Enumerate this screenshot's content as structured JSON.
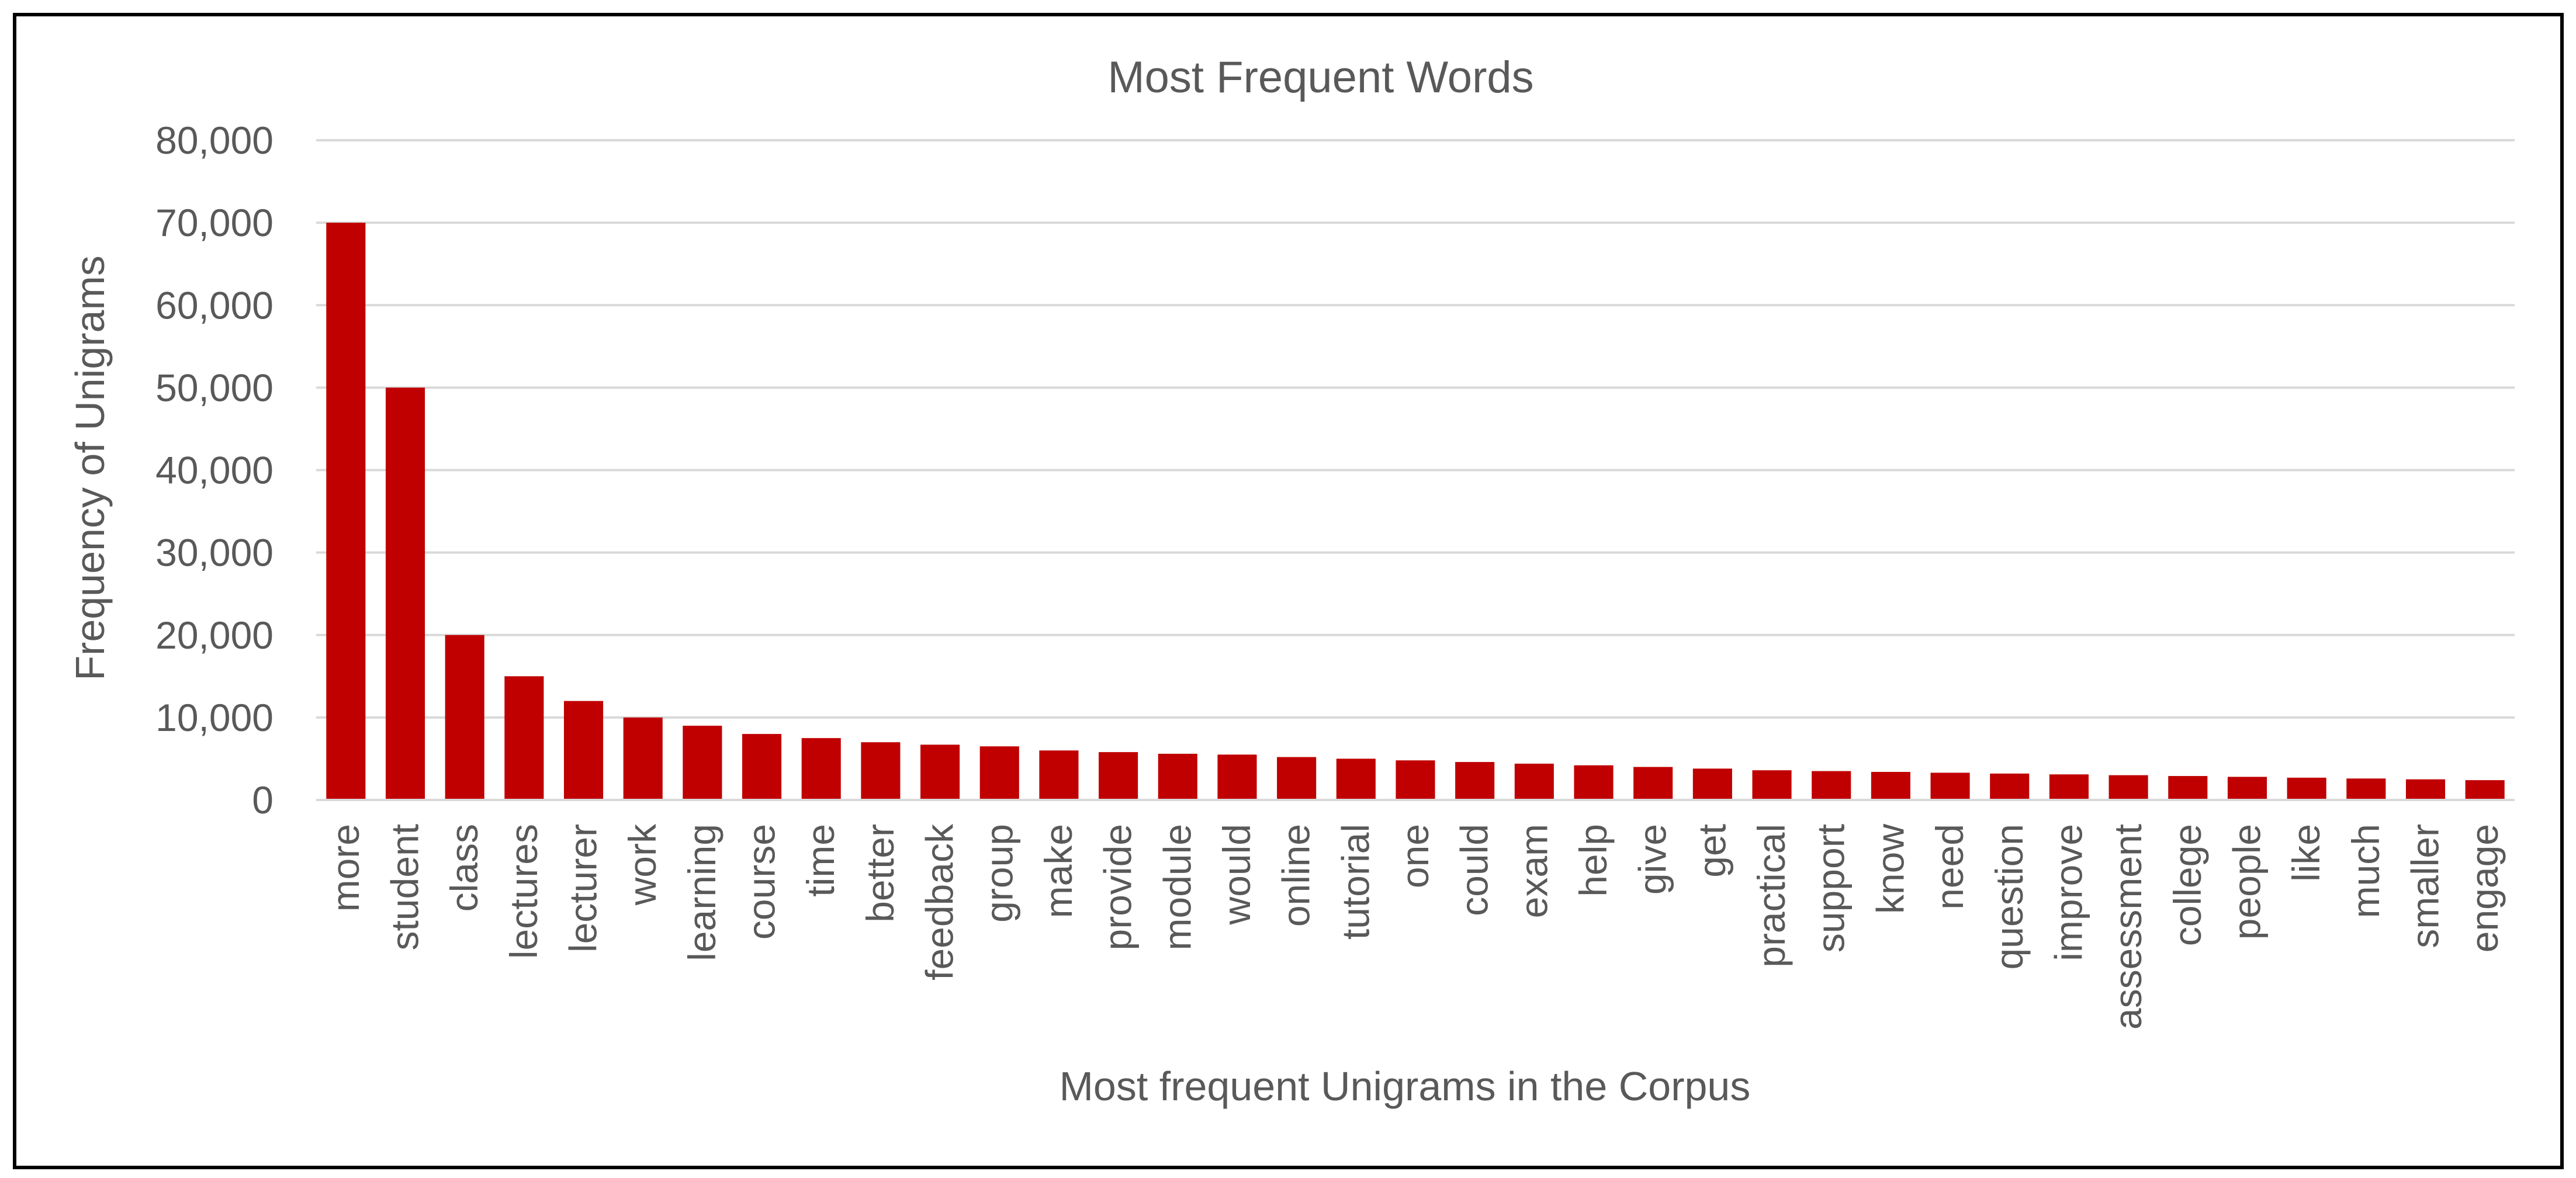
{
  "chart_data": {
    "type": "bar",
    "title": "Most Frequent Words",
    "xlabel": "Most frequent Unigrams in the Corpus",
    "ylabel": "Frequency of Unigrams",
    "ylim": [
      0,
      80000
    ],
    "yticks": [
      "0",
      "10,000",
      "20,000",
      "30,000",
      "40,000",
      "50,000",
      "60,000",
      "70,000",
      "80,000"
    ],
    "grid": true,
    "legend": "none",
    "bar_color": "#C00000",
    "categories": [
      "more",
      "student",
      "class",
      "lectures",
      "lecturer",
      "work",
      "learning",
      "course",
      "time",
      "better",
      "feedback",
      "group",
      "make",
      "provide",
      "module",
      "would",
      "online",
      "tutorial",
      "one",
      "could",
      "exam",
      "help",
      "give",
      "get",
      "practical",
      "support",
      "know",
      "need",
      "question",
      "improve",
      "assessment",
      "college",
      "people",
      "like",
      "much",
      "smaller",
      "engage"
    ],
    "values": [
      70000,
      50000,
      20000,
      15000,
      12000,
      10000,
      9000,
      8000,
      7500,
      7000,
      6700,
      6500,
      6000,
      5800,
      5600,
      5500,
      5200,
      5000,
      4800,
      4600,
      4400,
      4200,
      4000,
      3800,
      3600,
      3500,
      3400,
      3300,
      3200,
      3100,
      3000,
      2900,
      2800,
      2700,
      2600,
      2500,
      2400
    ]
  }
}
